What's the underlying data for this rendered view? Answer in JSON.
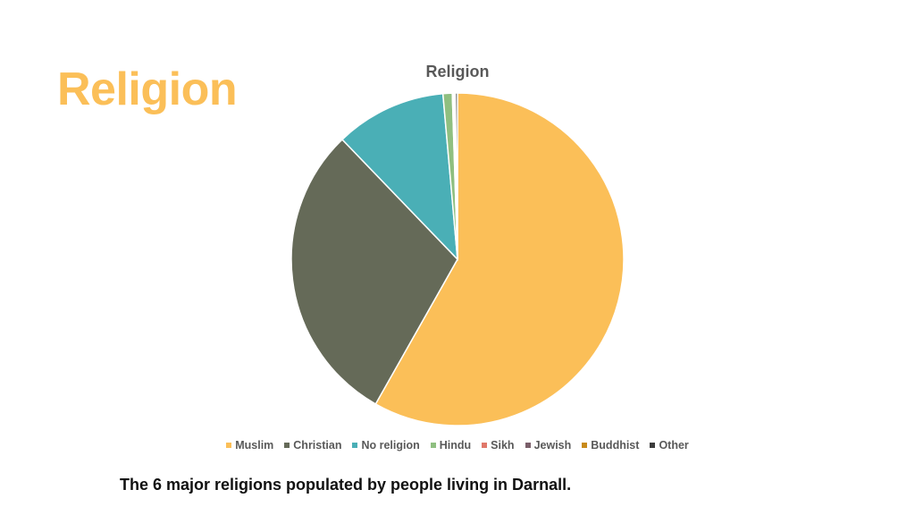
{
  "slide": {
    "title": "Religion",
    "caption": "The 6 major religions populated by people living in Darnall."
  },
  "chart_data": {
    "type": "pie",
    "title": "Religion",
    "legend_position": "bottom",
    "categories": [
      "Muslim",
      "Christian",
      "No religion",
      "Hindu",
      "Sikh",
      "Jewish",
      "Buddhist",
      "Other"
    ],
    "values": [
      58.2,
      29.6,
      10.8,
      0.9,
      0.1,
      0.1,
      0.1,
      0.2
    ],
    "colors": [
      "#fbbf58",
      "#656a58",
      "#4aafb6",
      "#8fbf80",
      "#e0786a",
      "#7a5f6a",
      "#c88a1a",
      "#3c3c3c"
    ]
  }
}
